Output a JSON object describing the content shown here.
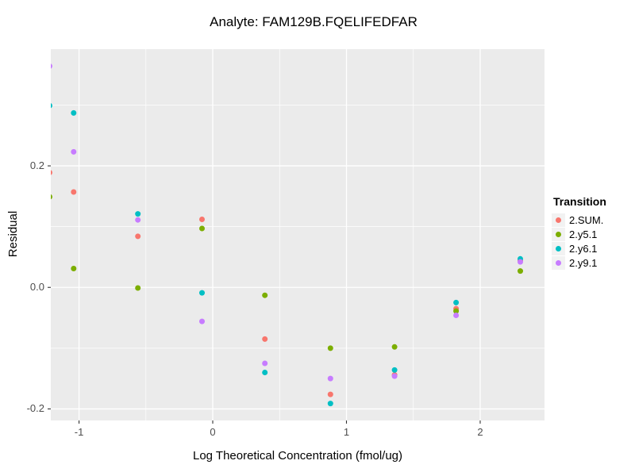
{
  "chart_data": {
    "type": "scatter",
    "title": "Analyte: FAM129B.FQELIFEDFAR",
    "xlabel": "Log Theoretical Concentration (fmol/ug)",
    "ylabel": "Residual",
    "legend_title": "Transition",
    "legend_position": "right",
    "grid": true,
    "xlim": [
      -1.211,
      2.481
    ],
    "ylim": [
      -0.219,
      0.392
    ],
    "x_ticks": [
      {
        "value": -1,
        "label": "-1"
      },
      {
        "value": 0,
        "label": "0"
      },
      {
        "value": 1,
        "label": "1"
      },
      {
        "value": 2,
        "label": "2"
      }
    ],
    "y_ticks": [
      {
        "value": 0.2,
        "label": "0.2"
      },
      {
        "value": 0.0,
        "label": "0.0"
      },
      {
        "value": -0.2,
        "label": "-0.2"
      }
    ],
    "x_minor_ticks": [
      -0.5,
      0.5,
      1.5
    ],
    "y_minor_ticks": [
      0.3,
      0.1,
      -0.1
    ],
    "series": [
      {
        "name": "2.SUM.",
        "color": "#F8766D",
        "points": [
          [
            -1.22,
            0.189
          ],
          [
            -1.04,
            0.157
          ],
          [
            -0.56,
            0.084
          ],
          [
            -0.08,
            0.112
          ],
          [
            0.39,
            -0.085
          ],
          [
            0.88,
            -0.176
          ],
          [
            1.36,
            -0.144
          ],
          [
            1.82,
            -0.035
          ],
          [
            2.3,
            0.044
          ]
        ]
      },
      {
        "name": "2.y5.1",
        "color": "#7CAE00",
        "points": [
          [
            -1.22,
            0.149
          ],
          [
            -1.04,
            0.031
          ],
          [
            -0.56,
            -0.001
          ],
          [
            -0.08,
            0.097
          ],
          [
            0.39,
            -0.013
          ],
          [
            0.88,
            -0.1
          ],
          [
            1.36,
            -0.098
          ],
          [
            1.82,
            -0.039
          ],
          [
            2.3,
            0.027
          ]
        ]
      },
      {
        "name": "2.y6.1",
        "color": "#00BFC4",
        "points": [
          [
            -1.22,
            0.299
          ],
          [
            -1.04,
            0.287
          ],
          [
            -0.56,
            0.121
          ],
          [
            -0.08,
            -0.009
          ],
          [
            0.39,
            -0.14
          ],
          [
            0.88,
            -0.191
          ],
          [
            1.36,
            -0.136
          ],
          [
            1.82,
            -0.025
          ],
          [
            2.3,
            0.047
          ]
        ]
      },
      {
        "name": "2.y9.1",
        "color": "#C77CFF",
        "points": [
          [
            -1.22,
            0.364
          ],
          [
            -1.04,
            0.223
          ],
          [
            -0.56,
            0.111
          ],
          [
            -0.08,
            -0.056
          ],
          [
            0.39,
            -0.125
          ],
          [
            0.88,
            -0.15
          ],
          [
            1.36,
            -0.146
          ],
          [
            1.82,
            -0.046
          ],
          [
            2.3,
            0.042
          ]
        ]
      }
    ]
  },
  "colors": {
    "panel_background": "#EBEBEB",
    "grid": "#FFFFFF",
    "legend_key_background": "#F2F2F2",
    "tick_label": "#4D4D4D",
    "tick_mark": "#333333"
  }
}
